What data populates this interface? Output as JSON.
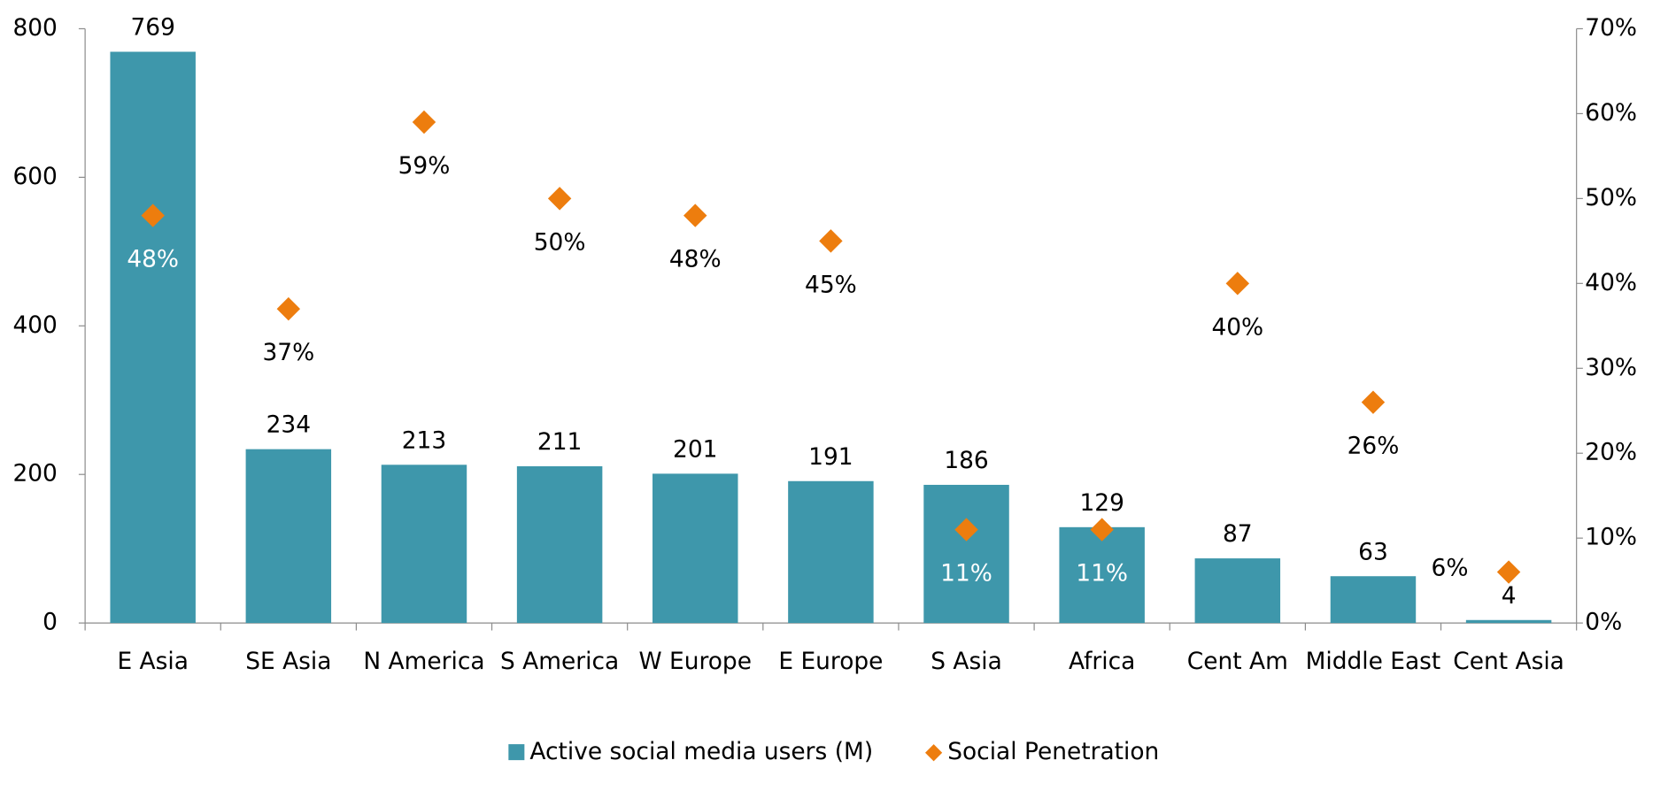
{
  "chart_data": {
    "type": "bar",
    "categories": [
      "E Asia",
      "SE Asia",
      "N America",
      "S America",
      "W Europe",
      "E Europe",
      "S Asia",
      "Africa",
      "Cent Am",
      "Middle East",
      "Cent Asia"
    ],
    "series": [
      {
        "name": "Active social media users (M)",
        "type": "bar",
        "color": "#3e97ab",
        "values": [
          769,
          234,
          213,
          211,
          201,
          191,
          186,
          129,
          87,
          63,
          4
        ]
      },
      {
        "name": "Social Penetration",
        "type": "scatter",
        "axis": "y2",
        "color": "#ed7d0e",
        "values": [
          48,
          37,
          59,
          50,
          48,
          45,
          11,
          11,
          40,
          26,
          6
        ],
        "value_labels": [
          "48%",
          "37%",
          "59%",
          "50%",
          "48%",
          "45%",
          "11%",
          "11%",
          "40%",
          "26%",
          "6%"
        ]
      }
    ],
    "ylim": [
      0,
      800
    ],
    "yticks": [
      0,
      200,
      400,
      600,
      800
    ],
    "y2lim": [
      0,
      70
    ],
    "y2ticks": [
      {
        "value": 0,
        "label": "0%"
      },
      {
        "value": 10,
        "label": "10%"
      },
      {
        "value": 20,
        "label": "20%"
      },
      {
        "value": 30,
        "label": "30%"
      },
      {
        "value": 40,
        "label": "40%"
      },
      {
        "value": 50,
        "label": "50%"
      },
      {
        "value": 60,
        "label": "60%"
      },
      {
        "value": 70,
        "label": "70%"
      }
    ],
    "legend": "bottom"
  }
}
